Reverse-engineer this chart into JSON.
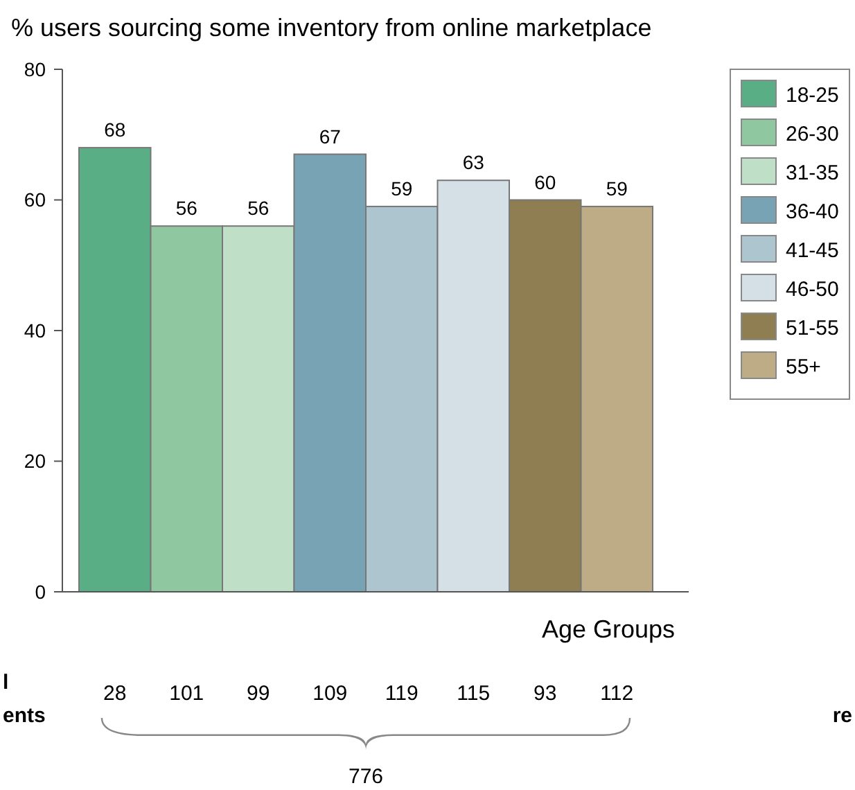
{
  "chart_data": {
    "type": "bar",
    "title": "% users sourcing some inventory from online marketplace",
    "xlabel": "Age Groups",
    "categories": [
      null
    ],
    "series": [
      {
        "name": "18-25",
        "color": "#5aae85",
        "values": [
          68
        ]
      },
      {
        "name": "26-30",
        "color": "#8fc7a0",
        "values": [
          56
        ]
      },
      {
        "name": "31-35",
        "color": "#bfe0c6",
        "values": [
          56
        ]
      },
      {
        "name": "36-40",
        "color": "#78a3b4",
        "values": [
          67
        ]
      },
      {
        "name": "41-45",
        "color": "#adc5cf",
        "values": [
          59
        ]
      },
      {
        "name": "46-50",
        "color": "#d4e0e6",
        "values": [
          63
        ]
      },
      {
        "name": "51-55",
        "color": "#8f7e52",
        "values": [
          60
        ]
      },
      {
        "name": "55+",
        "color": "#bdac86",
        "values": [
          59
        ]
      }
    ],
    "ylim": [
      0,
      80
    ],
    "yticks": [
      0,
      20,
      40,
      60,
      80
    ],
    "data_labels": true,
    "legend": "right",
    "annotations": [
      "28",
      "101",
      "99",
      "109",
      "119",
      "115",
      "93",
      "112",
      "776",
      "l",
      "ents",
      "re"
    ]
  }
}
